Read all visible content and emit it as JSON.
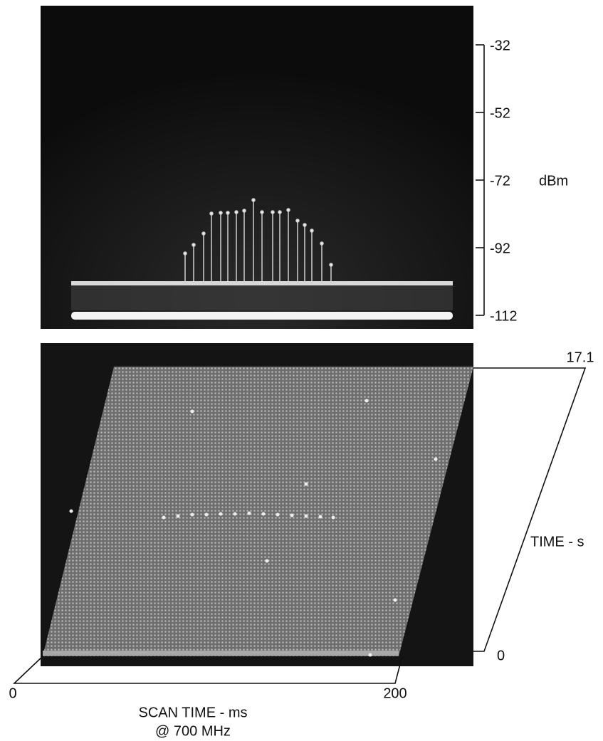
{
  "top": {
    "axis_label": "dBm",
    "ticks": [
      -32,
      -52,
      -72,
      -92,
      -112
    ]
  },
  "bottom": {
    "y_axis_label": "TIME - s",
    "y_ticks": [
      17.1,
      0
    ],
    "x_ticks": [
      0,
      200
    ],
    "x_axis_label": "SCAN TIME - ms",
    "x_axis_sublabel": "@ 700 MHz"
  }
}
